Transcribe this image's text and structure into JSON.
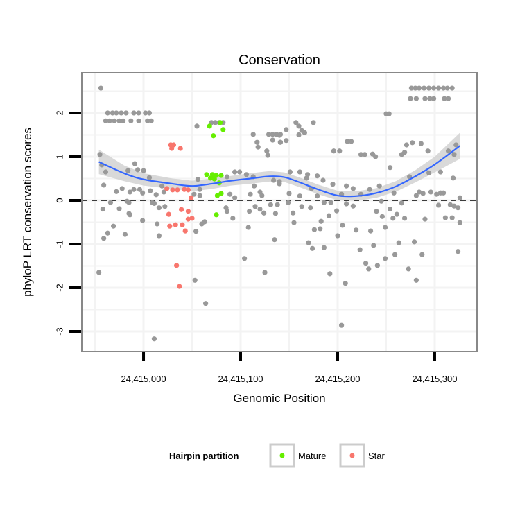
{
  "chart_data": {
    "type": "scatter",
    "title": "Conservation",
    "xlabel": "Genomic Position",
    "ylabel": "phyloP LRT conservation scores",
    "x_base": 24415000,
    "xlim_offset": [
      -63.6,
      343.6
    ],
    "ylim": [
      -3.46,
      2.92
    ],
    "x_ticks": [
      0,
      100,
      200,
      300
    ],
    "x_tick_labels": [
      "24,415,000",
      "24,415,100",
      "24,415,200",
      "24,415,300"
    ],
    "y_ticks": [
      -3,
      -2,
      -1,
      0,
      1,
      2
    ],
    "y_tick_labels": [
      "-3",
      "-2",
      "-1",
      "0",
      "1",
      "2"
    ],
    "grid": true,
    "reference_line_y": 0,
    "colors": {
      "other": "#999999",
      "Mature": "#66ee00",
      "Star": "#f8766d",
      "smooth": "#3366ff",
      "band": "#cccccc"
    },
    "legend": {
      "title": "Hairpin partition",
      "position": "bottom",
      "entries": [
        "Mature",
        "Star"
      ]
    },
    "note": "x values are offsets from x_base",
    "series": [
      {
        "name": "other",
        "points": [
          [
            -44,
            2.57
          ],
          [
            -37,
            2.0
          ],
          [
            -32,
            2.0
          ],
          [
            -28,
            2.0
          ],
          [
            -23,
            2.0
          ],
          [
            -18,
            2.0
          ],
          [
            -10,
            2.0
          ],
          [
            -5,
            2.0
          ],
          [
            2,
            2.0
          ],
          [
            6,
            2.0
          ],
          [
            -39,
            1.82
          ],
          [
            -35,
            1.82
          ],
          [
            -30,
            1.82
          ],
          [
            -25,
            1.82
          ],
          [
            -21,
            1.82
          ],
          [
            -13,
            1.82
          ],
          [
            -5,
            1.82
          ],
          [
            4,
            1.82
          ],
          [
            8,
            1.82
          ],
          [
            -45,
            1.05
          ],
          [
            -43,
            0.81
          ],
          [
            -39,
            0.65
          ],
          [
            -41,
            0.35
          ],
          [
            -42,
            -0.2
          ],
          [
            -34,
            -0.05
          ],
          [
            -31,
            -0.59
          ],
          [
            -37,
            -0.75
          ],
          [
            -41,
            -0.87
          ],
          [
            -46,
            -1.65
          ],
          [
            -28,
            0.2
          ],
          [
            -22,
            0.27
          ],
          [
            -25,
            -0.19
          ],
          [
            -19,
            -0.78
          ],
          [
            -16,
            0.68
          ],
          [
            -9,
            0.84
          ],
          [
            -6,
            0.7
          ],
          [
            0,
            0.68
          ],
          [
            6,
            0.52
          ],
          [
            -14,
            0.19
          ],
          [
            -10,
            0.25
          ],
          [
            -4,
            0.25
          ],
          [
            -1,
            0.17
          ],
          [
            7,
            0.22
          ],
          [
            -17,
            -0.02
          ],
          [
            -15,
            -0.05
          ],
          [
            -15,
            -0.3
          ],
          [
            -1,
            -0.46
          ],
          [
            -14,
            -0.33
          ],
          [
            13,
            0.13
          ],
          [
            9,
            -0.05
          ],
          [
            11,
            -0.07
          ],
          [
            16,
            -0.17
          ],
          [
            22,
            -0.14
          ],
          [
            14,
            -0.54
          ],
          [
            16,
            -0.81
          ],
          [
            19,
            0.33
          ],
          [
            21,
            0.19
          ],
          [
            11,
            -3.17
          ],
          [
            53,
            -1.83
          ],
          [
            64,
            -2.36
          ],
          [
            55,
            1.7
          ],
          [
            54,
            -0.71
          ],
          [
            56,
            0.48
          ],
          [
            52,
            0.14
          ],
          [
            58,
            0.11
          ],
          [
            58,
            0.25
          ],
          [
            60,
            -0.54
          ],
          [
            63,
            -0.49
          ],
          [
            70,
            1.78
          ],
          [
            74,
            1.78
          ],
          [
            78,
            1.78
          ],
          [
            82,
            1.78
          ],
          [
            86,
            0.54
          ],
          [
            89,
            0.14
          ],
          [
            94,
            0.06
          ],
          [
            85,
            -0.17
          ],
          [
            86,
            -0.25
          ],
          [
            92,
            -0.41
          ],
          [
            94,
            0.65
          ],
          [
            99,
            0.65
          ],
          [
            106,
            0.59
          ],
          [
            108,
            -0.62
          ],
          [
            109,
            -0.25
          ],
          [
            110,
            0.14
          ],
          [
            113,
            0.54
          ],
          [
            114,
            0.33
          ],
          [
            104,
            -1.33
          ],
          [
            113,
            1.51
          ],
          [
            117,
            1.33
          ],
          [
            118,
            1.22
          ],
          [
            127,
            1.13
          ],
          [
            128,
            1.03
          ],
          [
            129,
            1.51
          ],
          [
            133,
            1.51
          ],
          [
            137,
            1.51
          ],
          [
            141,
            1.51
          ],
          [
            133,
            1.38
          ],
          [
            141,
            1.33
          ],
          [
            120,
            0.19
          ],
          [
            122,
            0.11
          ],
          [
            115,
            -0.14
          ],
          [
            120,
            -0.2
          ],
          [
            124,
            -0.29
          ],
          [
            135,
            -0.9
          ],
          [
            125,
            -1.65
          ],
          [
            131,
            -0.1
          ],
          [
            138,
            -0.1
          ],
          [
            136,
            -0.3
          ],
          [
            134,
            0.46
          ],
          [
            140,
            0.38
          ],
          [
            140,
            1.49
          ],
          [
            147,
            1.62
          ],
          [
            157,
            1.78
          ],
          [
            160,
            1.7
          ],
          [
            163,
            1.6
          ],
          [
            166,
            1.55
          ],
          [
            160,
            1.5
          ],
          [
            175,
            1.78
          ],
          [
            141,
            1.33
          ],
          [
            147,
            1.37
          ],
          [
            140,
            0.43
          ],
          [
            151,
            0.65
          ],
          [
            161,
            0.65
          ],
          [
            169,
            0.59
          ],
          [
            168,
            0.51
          ],
          [
            179,
            0.56
          ],
          [
            185,
            0.46
          ],
          [
            195,
            0.37
          ],
          [
            150,
            0.16
          ],
          [
            161,
            0.1
          ],
          [
            173,
            0.27
          ],
          [
            149,
            -0.05
          ],
          [
            163,
            -0.14
          ],
          [
            172,
            -0.17
          ],
          [
            154,
            -0.29
          ],
          [
            155,
            -0.51
          ],
          [
            176,
            -0.67
          ],
          [
            182,
            -0.65
          ],
          [
            183,
            -0.48
          ],
          [
            170,
            -0.97
          ],
          [
            174,
            -1.1
          ],
          [
            186,
            -1.08
          ],
          [
            179,
            0.1
          ],
          [
            186,
            -0.05
          ],
          [
            193,
            -0.05
          ],
          [
            191,
            -0.35
          ],
          [
            199,
            -0.24
          ],
          [
            205,
            -0.57
          ],
          [
            200,
            -0.81
          ],
          [
            192,
            -1.68
          ],
          [
            208,
            -1.9
          ],
          [
            204,
            -2.86
          ],
          [
            196,
            1.13
          ],
          [
            202,
            1.13
          ],
          [
            210,
            1.35
          ],
          [
            214,
            1.35
          ],
          [
            204,
            0.14
          ],
          [
            209,
            0.33
          ],
          [
            209,
            -0.08
          ],
          [
            216,
            0.27
          ],
          [
            216,
            -0.13
          ],
          [
            219,
            -0.68
          ],
          [
            223,
            -1.13
          ],
          [
            224,
            1.05
          ],
          [
            228,
            1.05
          ],
          [
            236,
            1.06
          ],
          [
            239,
            1.0
          ],
          [
            224,
            0.14
          ],
          [
            233,
            0.25
          ],
          [
            243,
            0.33
          ],
          [
            245,
            -0.02
          ],
          [
            234,
            -0.7
          ],
          [
            237,
            -1.03
          ],
          [
            229,
            -1.44
          ],
          [
            232,
            -1.57
          ],
          [
            241,
            -1.49
          ],
          [
            249,
            -1.33
          ],
          [
            240,
            -0.25
          ],
          [
            246,
            -0.37
          ],
          [
            249,
            -0.62
          ],
          [
            254,
            0.75
          ],
          [
            250,
            1.98
          ],
          [
            253,
            1.98
          ],
          [
            254,
            -0.2
          ],
          [
            257,
            -0.41
          ],
          [
            261,
            -0.32
          ],
          [
            259,
            -1.24
          ],
          [
            263,
            -0.97
          ],
          [
            266,
            -0.06
          ],
          [
            269,
            -0.41
          ],
          [
            258,
            0.17
          ],
          [
            274,
            0.54
          ],
          [
            273,
            -1.57
          ],
          [
            279,
            -0.95
          ],
          [
            281,
            -1.83
          ],
          [
            287,
            -1.24
          ],
          [
            266,
            1.05
          ],
          [
            269,
            1.1
          ],
          [
            271,
            1.27
          ],
          [
            277,
            1.32
          ],
          [
            286,
            1.3
          ],
          [
            293,
            1.13
          ],
          [
            290,
            -0.43
          ],
          [
            281,
            0.11
          ],
          [
            284,
            0.19
          ],
          [
            288,
            0.16
          ],
          [
            296,
            0.19
          ],
          [
            302,
            0.14
          ],
          [
            306,
            0.17
          ],
          [
            309,
            0.17
          ],
          [
            304,
            -0.11
          ],
          [
            294,
            0.63
          ],
          [
            306,
            0.65
          ],
          [
            319,
            0.51
          ],
          [
            314,
            1.13
          ],
          [
            320,
            1.05
          ],
          [
            322,
            1.27
          ],
          [
            311,
            -0.4
          ],
          [
            318,
            -0.4
          ],
          [
            316,
            -0.1
          ],
          [
            320,
            -0.13
          ],
          [
            324,
            -0.17
          ],
          [
            326,
            0.06
          ],
          [
            326,
            -0.51
          ],
          [
            324,
            -1.17
          ],
          [
            276,
            2.57
          ],
          [
            280,
            2.57
          ],
          [
            284,
            2.57
          ],
          [
            289,
            2.57
          ],
          [
            294,
            2.57
          ],
          [
            299,
            2.57
          ],
          [
            304,
            2.57
          ],
          [
            309,
            2.57
          ],
          [
            313,
            2.57
          ],
          [
            318,
            2.57
          ],
          [
            275,
            2.33
          ],
          [
            281,
            2.33
          ],
          [
            290,
            2.33
          ],
          [
            295,
            2.33
          ],
          [
            299,
            2.33
          ],
          [
            310,
            2.33
          ],
          [
            314,
            2.33
          ]
        ]
      },
      {
        "name": "Mature",
        "points": [
          [
            68,
            1.7
          ],
          [
            79,
            1.78
          ],
          [
            82,
            1.62
          ],
          [
            72,
            1.48
          ],
          [
            65,
            0.59
          ],
          [
            71,
            0.59
          ],
          [
            75,
            0.57
          ],
          [
            80,
            0.57
          ],
          [
            69,
            0.51
          ],
          [
            73,
            0.49
          ],
          [
            78,
            0.4
          ],
          [
            76,
            0.11
          ],
          [
            80,
            0.16
          ],
          [
            75,
            -0.33
          ]
        ]
      },
      {
        "name": "Star",
        "points": [
          [
            28,
            1.27
          ],
          [
            31,
            1.27
          ],
          [
            29,
            1.19
          ],
          [
            38,
            1.19
          ],
          [
            24,
            0.27
          ],
          [
            30,
            0.24
          ],
          [
            35,
            0.24
          ],
          [
            42,
            0.25
          ],
          [
            46,
            0.24
          ],
          [
            49,
            0.06
          ],
          [
            26,
            -0.32
          ],
          [
            39,
            -0.21
          ],
          [
            46,
            -0.25
          ],
          [
            46,
            -0.43
          ],
          [
            50,
            -0.41
          ],
          [
            27,
            -0.59
          ],
          [
            33,
            -0.56
          ],
          [
            40,
            -0.56
          ],
          [
            43,
            -0.7
          ],
          [
            34,
            -1.49
          ],
          [
            37,
            -1.97
          ]
        ]
      }
    ],
    "smooth": {
      "method": "loess",
      "points": [
        [
          -46,
          0.88
        ],
        [
          -20,
          0.62
        ],
        [
          0,
          0.48
        ],
        [
          30,
          0.38
        ],
        [
          50,
          0.33
        ],
        [
          70,
          0.38
        ],
        [
          90,
          0.45
        ],
        [
          110,
          0.5
        ],
        [
          130,
          0.55
        ],
        [
          145,
          0.53
        ],
        [
          160,
          0.42
        ],
        [
          180,
          0.25
        ],
        [
          200,
          0.11
        ],
        [
          220,
          0.1
        ],
        [
          240,
          0.17
        ],
        [
          260,
          0.32
        ],
        [
          280,
          0.55
        ],
        [
          300,
          0.82
        ],
        [
          326,
          1.25
        ]
      ],
      "se": [
        0.28,
        0.18,
        0.14,
        0.12,
        0.12,
        0.12,
        0.11,
        0.12,
        0.12,
        0.11,
        0.11,
        0.11,
        0.11,
        0.11,
        0.11,
        0.12,
        0.14,
        0.18,
        0.3
      ]
    }
  }
}
